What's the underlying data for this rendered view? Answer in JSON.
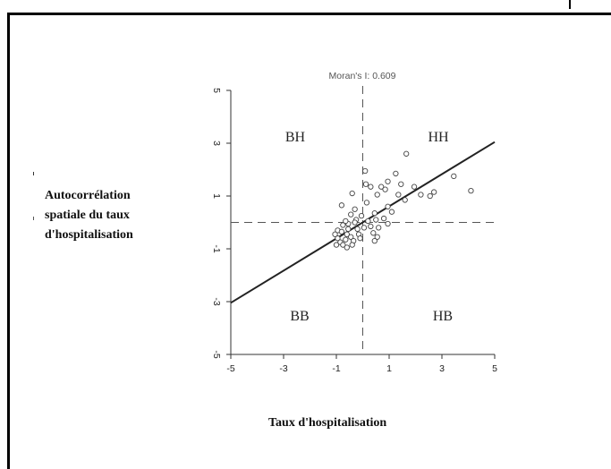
{
  "chart_data": {
    "type": "scatter",
    "title": "Moran's I: 0.609",
    "xlabel": "Taux d'hospitalisation",
    "ylabel_lines": [
      "Autocorrélation",
      "spatiale du taux",
      "d'hospitalisation"
    ],
    "xlim": [
      -5,
      5
    ],
    "ylim": [
      -5,
      5
    ],
    "xticks": [
      "-5",
      "-3",
      "-1",
      "1",
      "3",
      "5"
    ],
    "yticks": [
      "-5",
      "-3",
      "-1",
      "1",
      "3",
      "5"
    ],
    "quadrants": {
      "top_left": "BH",
      "top_right": "HH",
      "bottom_left": "BB",
      "bottom_right": "HB"
    },
    "regression_line": {
      "slope": 0.609,
      "intercept": 0,
      "style": "solid"
    },
    "reference_lines": {
      "x": 0,
      "y": 0,
      "style": "dashed"
    },
    "points": [
      [
        0.09,
        1.95
      ],
      [
        1.65,
        2.6
      ],
      [
        0.12,
        1.45
      ],
      [
        0.7,
        1.35
      ],
      [
        0.95,
        1.55
      ],
      [
        0.85,
        1.25
      ],
      [
        1.25,
        1.85
      ],
      [
        1.45,
        1.45
      ],
      [
        1.95,
        1.35
      ],
      [
        3.45,
        1.75
      ],
      [
        4.1,
        1.2
      ],
      [
        2.55,
        1.0
      ],
      [
        2.7,
        1.15
      ],
      [
        2.2,
        1.05
      ],
      [
        1.35,
        1.05
      ],
      [
        1.6,
        0.85
      ],
      [
        0.55,
        1.05
      ],
      [
        0.3,
        1.35
      ],
      [
        -0.4,
        1.1
      ],
      [
        0.95,
        0.6
      ],
      [
        1.1,
        0.4
      ],
      [
        0.8,
        0.15
      ],
      [
        0.45,
        0.35
      ],
      [
        0.15,
        0.75
      ],
      [
        -0.3,
        0.5
      ],
      [
        -0.8,
        0.65
      ],
      [
        -0.45,
        0.3
      ],
      [
        -0.25,
        0.1
      ],
      [
        -0.05,
        0.25
      ],
      [
        0.2,
        0.05
      ],
      [
        0.5,
        0.1
      ],
      [
        0.6,
        -0.2
      ],
      [
        0.95,
        -0.05
      ],
      [
        -0.15,
        -0.45
      ],
      [
        0.4,
        -0.4
      ],
      [
        0.55,
        -0.55
      ],
      [
        0.45,
        -0.7
      ],
      [
        -0.55,
        -0.05
      ],
      [
        -0.75,
        -0.1
      ],
      [
        -0.95,
        -0.3
      ],
      [
        -0.8,
        -0.35
      ],
      [
        -0.6,
        -0.45
      ],
      [
        -0.55,
        -0.25
      ],
      [
        -0.45,
        -0.55
      ],
      [
        -0.35,
        -0.7
      ],
      [
        -0.95,
        -0.6
      ],
      [
        -0.85,
        -0.75
      ],
      [
        -1.0,
        -0.85
      ],
      [
        -0.75,
        -0.85
      ],
      [
        -0.6,
        -0.95
      ],
      [
        -0.4,
        -0.85
      ],
      [
        -1.05,
        -0.45
      ],
      [
        -0.65,
        -0.65
      ],
      [
        -0.2,
        -0.25
      ],
      [
        0.05,
        -0.2
      ],
      [
        -0.3,
        0.0
      ],
      [
        -0.65,
        0.05
      ],
      [
        0.3,
        -0.15
      ],
      [
        -0.1,
        -0.6
      ]
    ]
  }
}
